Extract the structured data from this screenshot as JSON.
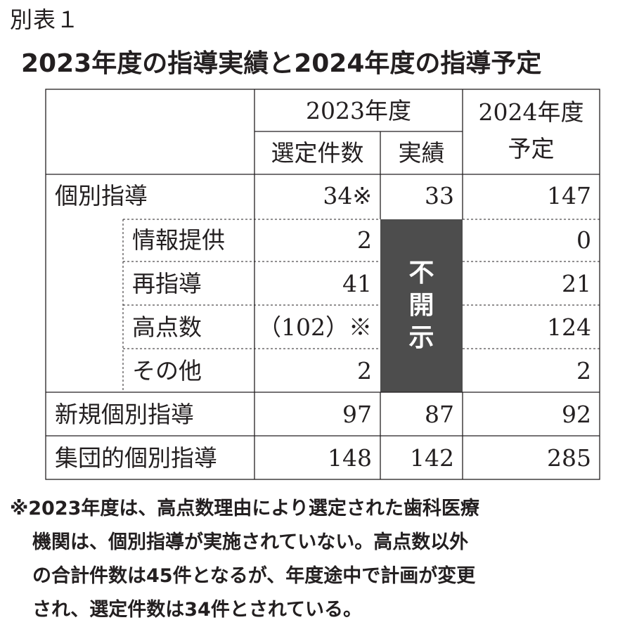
{
  "label": "別表１",
  "title": "2023年度の指導実績と2024年度の指導予定",
  "header": {
    "group_2023": "2023年度",
    "selected_count": "選定件数",
    "actual": "実績",
    "plan_2024_line1": "2024年度",
    "plan_2024_line2": "予定"
  },
  "rows": [
    {
      "label": "個別指導",
      "selected": "34※",
      "actual": "33",
      "plan": "147"
    },
    {
      "label": "情報提供",
      "selected": "2",
      "plan": "0"
    },
    {
      "label": "再指導",
      "selected": "41",
      "plan": "21"
    },
    {
      "label": "高点数",
      "selected": "（102）※",
      "plan": "124"
    },
    {
      "label": "その他",
      "selected": "2",
      "plan": "2"
    },
    {
      "label": "新規個別指導",
      "selected": "97",
      "actual": "87",
      "plan": "92"
    },
    {
      "label": "集団的個別指導",
      "selected": "148",
      "actual": "142",
      "plan": "285"
    }
  ],
  "redacted": {
    "chars": [
      "不",
      "開",
      "示"
    ],
    "color": "#4d4d4d"
  },
  "note": [
    "※2023年度は、高点数理由により選定された歯科医療",
    "機関は、個別指導が実施されていない。高点数以外",
    "の合計件数は45件となるが、年度途中で計画が変更",
    "され、選定件数は34件とされている。"
  ]
}
